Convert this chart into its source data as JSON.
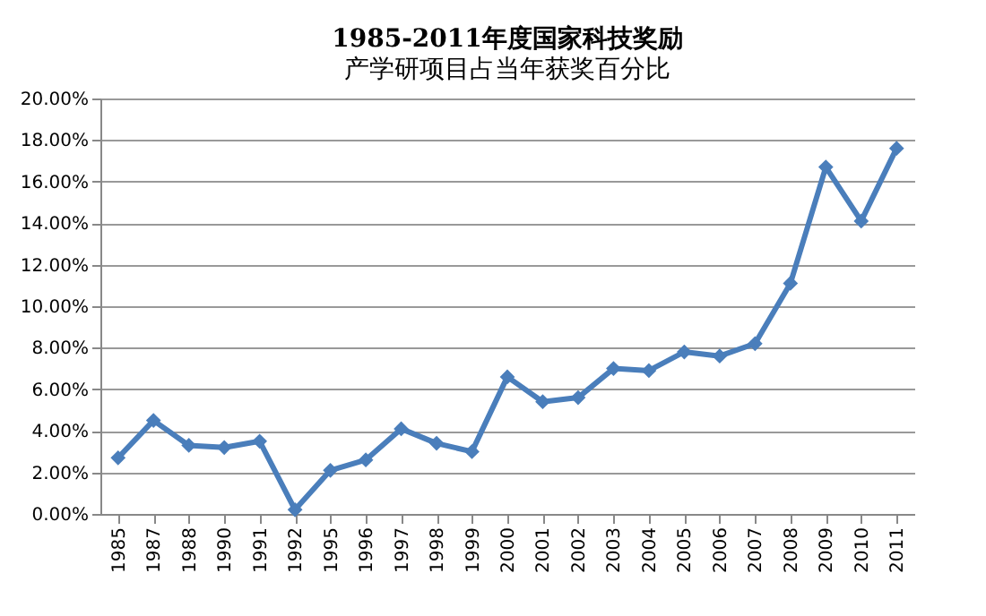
{
  "chart_data": {
    "type": "line",
    "title": "1985-2011年度国家科技奖励",
    "subtitle": "产学研项目占当年获奖百分比",
    "categories": [
      "1985",
      "1987",
      "1988",
      "1990",
      "1991",
      "1992",
      "1995",
      "1996",
      "1997",
      "1998",
      "1999",
      "2000",
      "2001",
      "2002",
      "2003",
      "2004",
      "2005",
      "2006",
      "2007",
      "2008",
      "2009",
      "2010",
      "2011"
    ],
    "series": [
      {
        "color": "#4a7ebb",
        "values": [
          2.7,
          4.5,
          3.3,
          3.2,
          3.5,
          0.2,
          2.1,
          2.6,
          4.1,
          3.4,
          3.0,
          6.6,
          5.4,
          5.6,
          7.0,
          6.9,
          7.8,
          7.6,
          8.2,
          11.1,
          16.7,
          14.1,
          17.6
        ]
      }
    ],
    "ylim": [
      0,
      20
    ],
    "yticks": [
      {
        "value": 0,
        "label": "0.00%"
      },
      {
        "value": 2,
        "label": "2.00%"
      },
      {
        "value": 4,
        "label": "4.00%"
      },
      {
        "value": 6,
        "label": "6.00%"
      },
      {
        "value": 8,
        "label": "8.00%"
      },
      {
        "value": 10,
        "label": "10.00%"
      },
      {
        "value": 12,
        "label": "12.00%"
      },
      {
        "value": 14,
        "label": "14.00%"
      },
      {
        "value": 16,
        "label": "16.00%"
      },
      {
        "value": 18,
        "label": "18.00%"
      },
      {
        "value": 20,
        "label": "20.00%"
      }
    ],
    "grid": "y",
    "marker": "diamond",
    "line_style": "solid"
  }
}
